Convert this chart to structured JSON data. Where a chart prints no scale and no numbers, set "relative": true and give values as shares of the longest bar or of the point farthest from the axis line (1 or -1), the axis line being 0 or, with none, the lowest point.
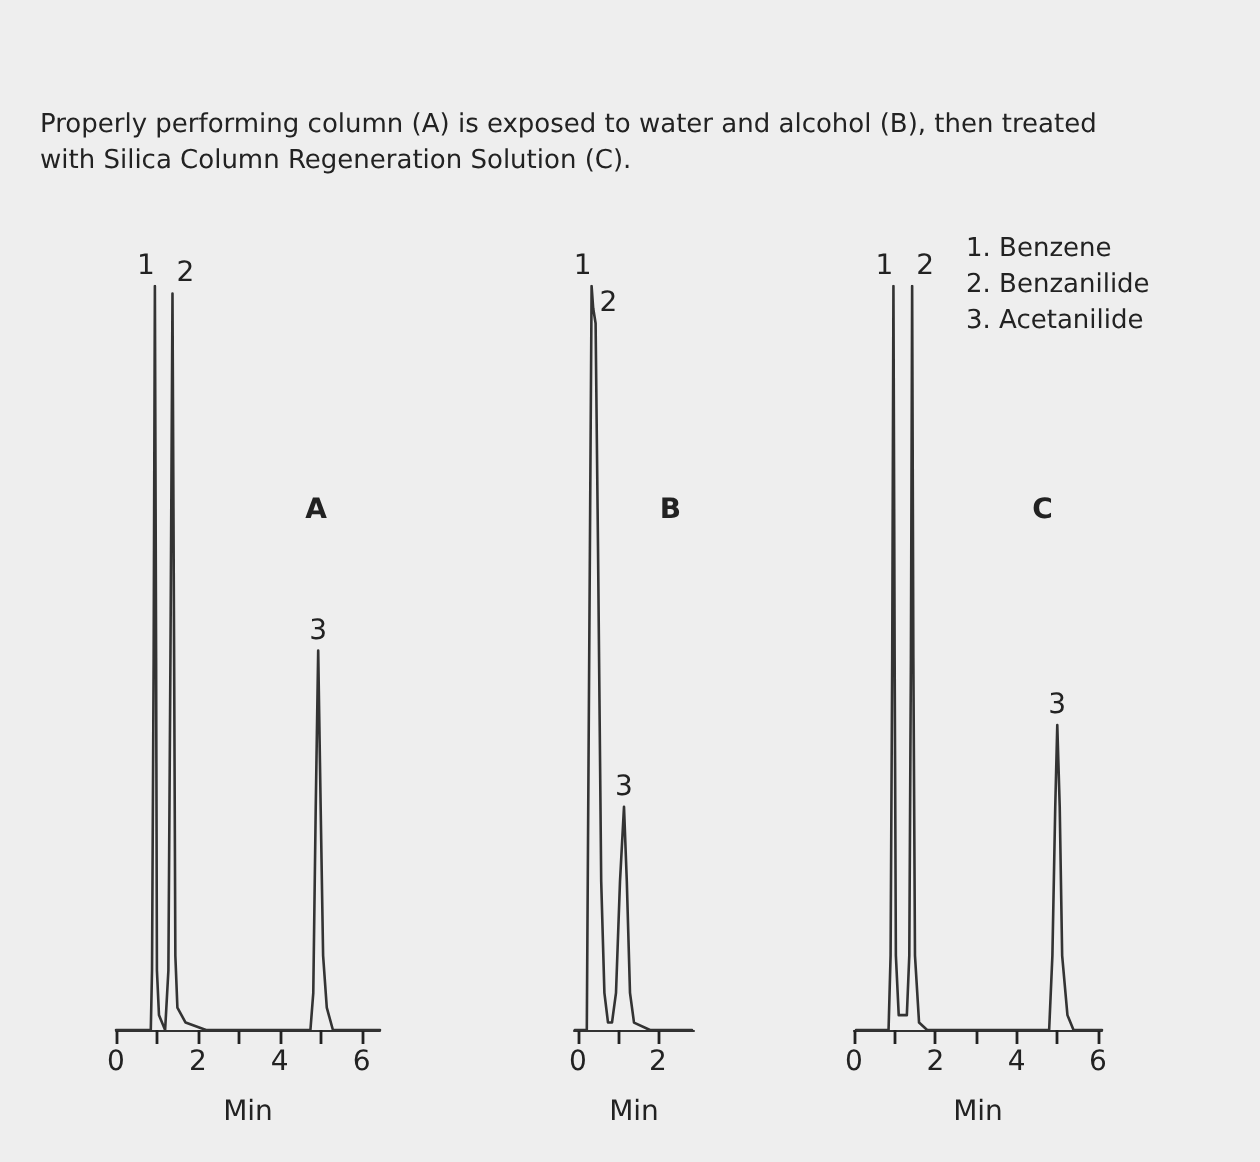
{
  "chart_data": [
    {
      "type": "line",
      "title": "A",
      "xlabel": "Min",
      "relative": true,
      "grid": false,
      "marker": "none",
      "line_style": "solid",
      "tick_labels": "x",
      "annotations": [
        "Properly performing column (A) is exposed to water and alcohol (B), then treated with Silica Column Regeneration Solution (C).",
        {
          "text": "1",
          "x": 0.95,
          "y": 1
        },
        {
          "text": "2",
          "x": 1.38,
          "y": 0.99
        },
        {
          "text": "3",
          "x": 4.94,
          "y": 0.51
        }
      ],
      "xlim": [
        0,
        6.45
      ],
      "xticks": [
        0,
        {
          "value": 1,
          "label": null
        },
        2,
        {
          "value": 3,
          "label": null
        },
        4,
        {
          "value": 5,
          "label": null
        },
        6
      ],
      "series": [
        {
          "color": "#333333",
          "x": [
            0,
            0.85,
            0.88,
            0.92,
            0.95,
            0.98,
            1.0,
            1.05,
            1.2,
            1.28,
            1.33,
            1.38,
            1.42,
            1.45,
            1.5,
            1.7,
            2.2,
            4.75,
            4.82,
            4.88,
            4.94,
            5.0,
            5.06,
            5.15,
            5.3,
            6.45
          ],
          "values": [
            0,
            0,
            0.08,
            0.5,
            1,
            0.5,
            0.08,
            0.02,
            0,
            0.08,
            0.5,
            0.99,
            0.5,
            0.1,
            0.03,
            0.01,
            0,
            0,
            0.05,
            0.3,
            0.51,
            0.3,
            0.1,
            0.03,
            0,
            0
          ]
        }
      ]
    },
    {
      "type": "line",
      "title": "B",
      "xlabel": "Min",
      "relative": true,
      "grid": false,
      "marker": "none",
      "line_style": "solid",
      "tick_labels": "x",
      "annotations": [
        {
          "text": "1",
          "x": 0.34,
          "y": 1
        },
        {
          "text": "2",
          "x": 0.44,
          "y": 0.95
        },
        {
          "text": "3",
          "x": 1.15,
          "y": 0.3
        }
      ],
      "xlim": [
        -0.1,
        2.9
      ],
      "xticks": [
        0,
        {
          "value": 1,
          "label": null
        },
        2
      ],
      "series": [
        {
          "color": "#333333",
          "x": [
            -0.08,
            0.22,
            0.28,
            0.34,
            0.38,
            0.44,
            0.5,
            0.58,
            0.66,
            0.75,
            0.85,
            0.95,
            1.05,
            1.15,
            1.22,
            1.3,
            1.4,
            1.8,
            2.85
          ],
          "values": [
            0,
            0,
            0.5,
            1,
            0.97,
            0.95,
            0.65,
            0.2,
            0.05,
            0.01,
            0.01,
            0.05,
            0.2,
            0.3,
            0.2,
            0.05,
            0.01,
            0,
            0
          ]
        }
      ]
    },
    {
      "type": "line",
      "title": "C",
      "xlabel": "Min",
      "relative": true,
      "grid": false,
      "marker": "none",
      "line_style": "solid",
      "tick_labels": "x",
      "annotations": [
        "1. Benzene",
        "2. Benzanilide",
        "3. Acetanilide",
        {
          "text": "1",
          "x": 0.97,
          "y": 1
        },
        {
          "text": "2",
          "x": 1.43,
          "y": 1
        },
        {
          "text": "3",
          "x": 5.0,
          "y": 0.41
        }
      ],
      "xlim": [
        0,
        6.1
      ],
      "xticks": [
        0,
        {
          "value": 1,
          "label": null
        },
        2,
        {
          "value": 3,
          "label": null
        },
        4,
        {
          "value": 5,
          "label": null
        },
        6
      ],
      "series": [
        {
          "color": "#333333",
          "x": [
            0.05,
            0.85,
            0.9,
            0.94,
            0.97,
            1.0,
            1.03,
            1.1,
            1.3,
            1.36,
            1.4,
            1.43,
            1.46,
            1.5,
            1.6,
            1.8,
            4.8,
            4.88,
            4.95,
            5.0,
            5.06,
            5.12,
            5.25,
            5.4,
            6.1
          ],
          "values": [
            0,
            0,
            0.1,
            0.5,
            1,
            0.5,
            0.1,
            0.02,
            0.02,
            0.1,
            0.5,
            1,
            0.5,
            0.1,
            0.01,
            0,
            0,
            0.1,
            0.3,
            0.41,
            0.3,
            0.1,
            0.02,
            0,
            0
          ]
        }
      ]
    }
  ]
}
